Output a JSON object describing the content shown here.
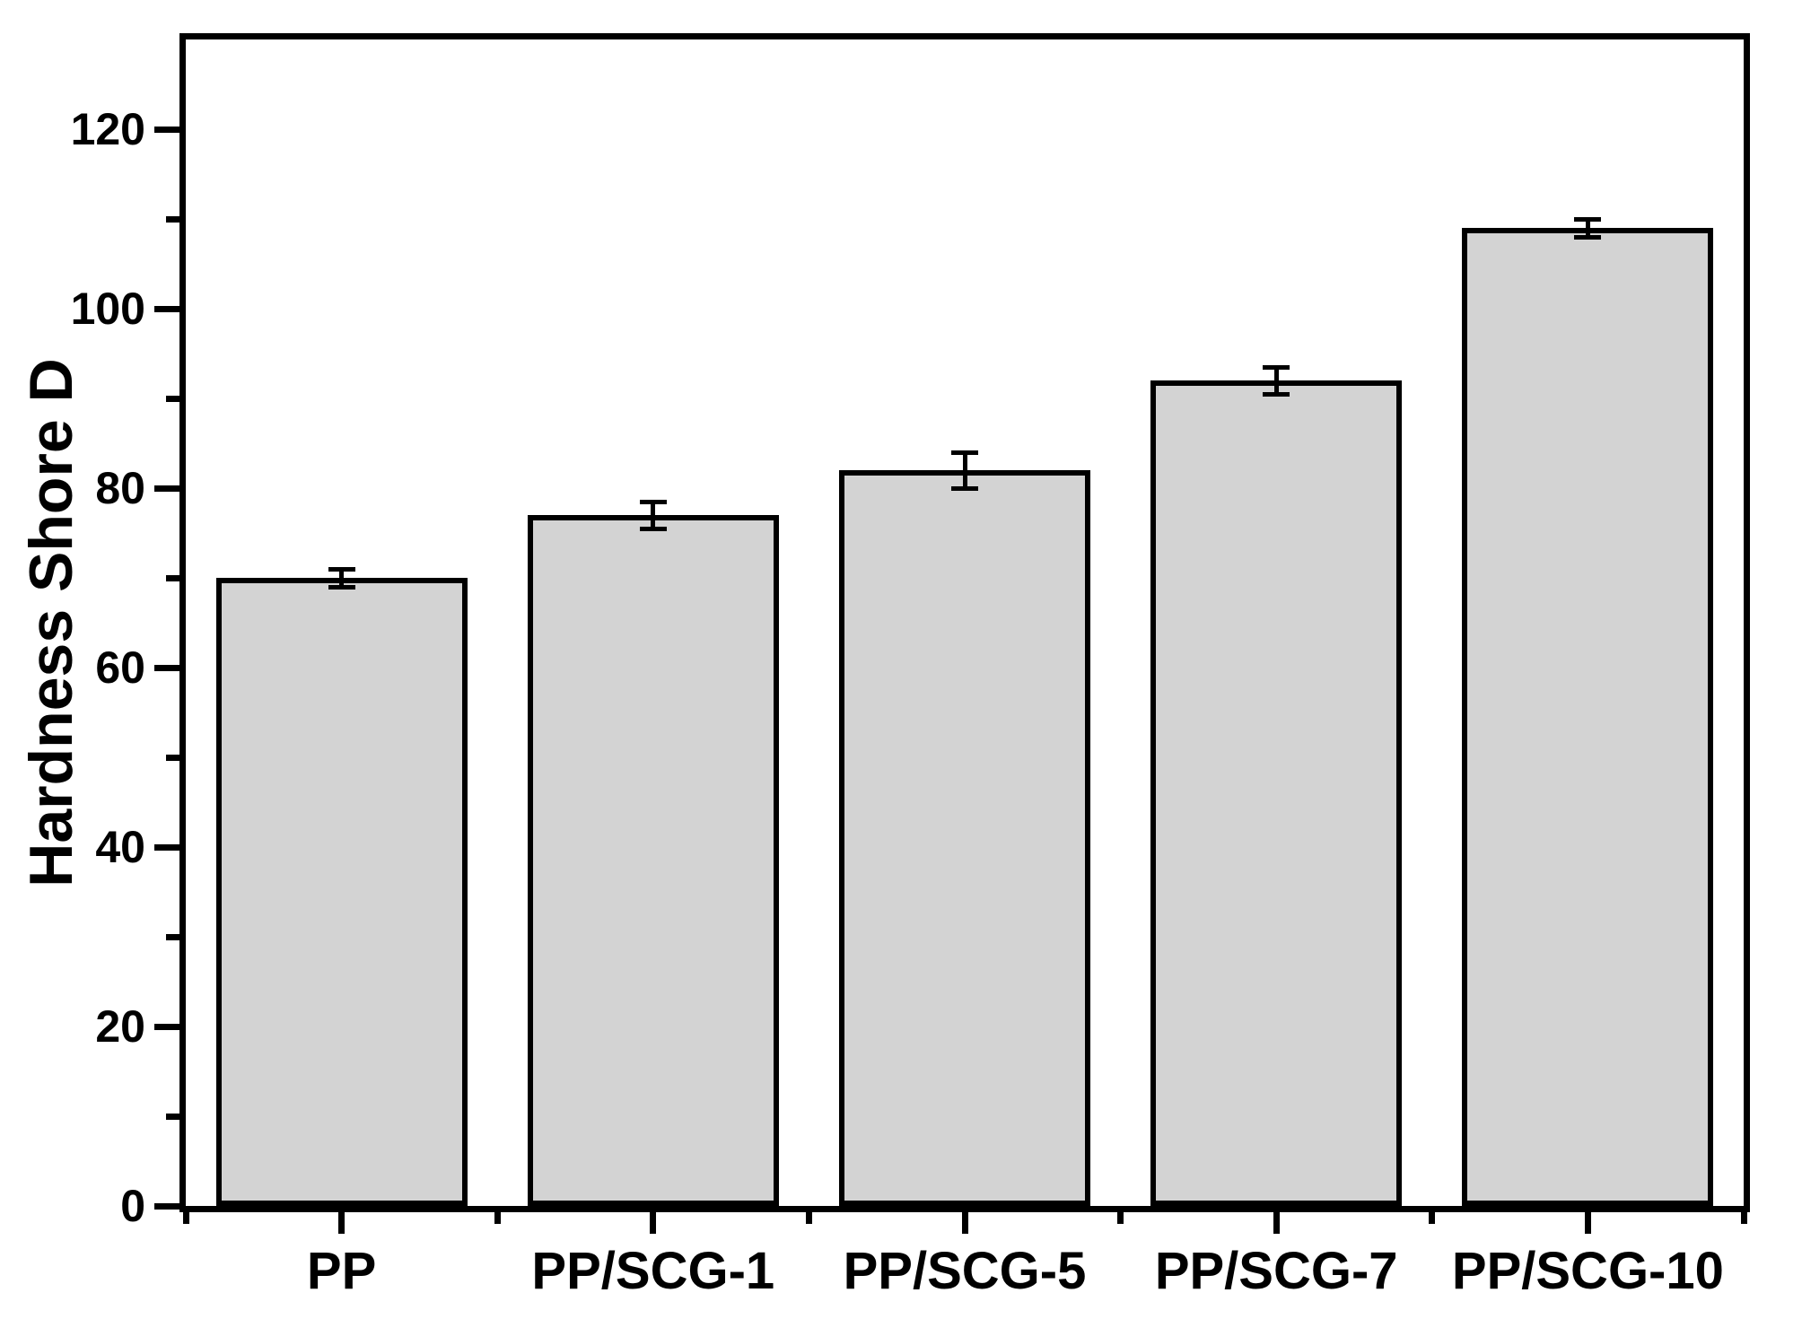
{
  "chart_data": {
    "type": "bar",
    "title": "",
    "xlabel": "",
    "ylabel": "Hardness Shore D",
    "categories": [
      "PP",
      "PP/SCG-1",
      "PP/SCG-5",
      "PP/SCG-7",
      "PP/SCG-10"
    ],
    "series": [
      {
        "name": "Hardness Shore D",
        "values": [
          70,
          77,
          82,
          92,
          109
        ],
        "errors": [
          1,
          1.5,
          2,
          1.5,
          1
        ]
      }
    ],
    "ylim": [
      0,
      130
    ],
    "yticks_major": [
      0,
      20,
      40,
      60,
      80,
      100,
      120
    ],
    "ytick_labels": [
      "0",
      "20",
      "40",
      "60",
      "80",
      "100",
      "120"
    ],
    "yticks_minor": [
      10,
      30,
      50,
      70,
      90,
      110
    ],
    "grid": false,
    "legend": false,
    "error_caps": true,
    "colors": {
      "bar_fill": "#d3d3d3",
      "bar_border": "#000000",
      "axis": "#000000",
      "background": "#ffffff",
      "text": "#000000"
    }
  }
}
